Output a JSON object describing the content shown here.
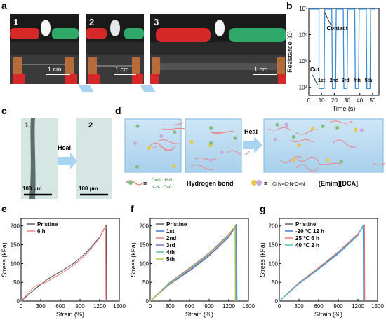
{
  "panels": {
    "a": {
      "letter": "a",
      "photos": [
        {
          "label": "1",
          "scale": "1 cm"
        },
        {
          "label": "2",
          "scale": "1 cm"
        },
        {
          "label": "3",
          "scale": "1 cm"
        }
      ]
    },
    "b": {
      "letter": "b"
    },
    "c": {
      "letter": "c",
      "images": [
        {
          "label": "1",
          "scale": "100 μm"
        },
        {
          "label": "2",
          "scale": "100 μm"
        }
      ],
      "arrow_label": "Heal"
    },
    "d": {
      "letter": "d",
      "arrow_label": "Heal",
      "legend_hbond": "Hydrogen bond",
      "legend_il": "[Emim][DCA]"
    },
    "e": {
      "letter": "e"
    },
    "f": {
      "letter": "f"
    },
    "g": {
      "letter": "g"
    }
  },
  "colors": {
    "pristine": "#555555",
    "e_6h": "#f08080",
    "f_1st": "#3b6fd6",
    "f_2nd": "#f07070",
    "f_3rd": "#8a5fc8",
    "f_4th": "#49b8c8",
    "f_5th": "#b0c040",
    "g_1": "#3b6fd6",
    "g_2": "#f07070",
    "g_3": "#49b8c8",
    "resist": "#3b8fd6"
  },
  "chart_data": [
    {
      "id": "b",
      "type": "line",
      "ylabel": "Resistance (Ω)",
      "xlabel": "Time (s)",
      "yscale": "log",
      "ylim": [
        5000,
        10000000
      ],
      "xlim": [
        0,
        55
      ],
      "x_ticks": [
        0,
        10,
        20,
        30,
        40,
        50
      ],
      "y_ticks": [
        {
          "value": 10000,
          "label": "10⁴"
        },
        {
          "value": 100000,
          "label": "10⁵"
        },
        {
          "value": 1000000,
          "label": "10⁶"
        },
        {
          "value": 10000000,
          "label": "10⁷"
        }
      ],
      "annotations": {
        "cut": "Cut",
        "contact": "Contact"
      },
      "cycle_labels": [
        "1st",
        "2nd",
        "3rd",
        "4th",
        "5th"
      ],
      "cycles": [
        {
          "low": [
            8,
            12
          ],
          "high": [
            12.5,
            18
          ]
        },
        {
          "low": [
            18.5,
            21
          ],
          "high": [
            21.5,
            27
          ]
        },
        {
          "low": [
            27.5,
            30
          ],
          "high": [
            30.5,
            36
          ]
        },
        {
          "low": [
            36.5,
            39
          ],
          "high": [
            39.5,
            45
          ]
        },
        {
          "low": [
            45.5,
            48
          ],
          "high": [
            48.5,
            52
          ]
        }
      ],
      "base_value": 9000,
      "high_value": 9500000
    },
    {
      "id": "e",
      "type": "line",
      "xlabel": "Strain (%)",
      "ylabel": "Stress (kPa)",
      "xlim": [
        0,
        1500
      ],
      "ylim": [
        0,
        220
      ],
      "x_ticks": [
        0,
        300,
        600,
        900,
        1200,
        1500
      ],
      "y_ticks": [
        0,
        50,
        100,
        150,
        200
      ],
      "series": [
        {
          "name": "Pristine",
          "x": [
            0,
            200,
            400,
            600,
            800,
            1000,
            1200,
            1300
          ],
          "y": [
            0,
            30,
            58,
            78,
            100,
            130,
            170,
            203
          ]
        },
        {
          "name": "6 h",
          "x": [
            0,
            200,
            400,
            600,
            800,
            1000,
            1200,
            1290
          ],
          "y": [
            0,
            38,
            52,
            72,
            95,
            125,
            168,
            200
          ]
        }
      ],
      "break_x": [
        1300,
        1290
      ]
    },
    {
      "id": "f",
      "type": "line",
      "xlabel": "Strain (%)",
      "ylabel": "Stress (kPa)",
      "xlim": [
        0,
        1500
      ],
      "ylim": [
        0,
        220
      ],
      "x_ticks": [
        0,
        300,
        600,
        900,
        1200,
        1500
      ],
      "y_ticks": [
        0,
        50,
        100,
        150,
        200
      ],
      "series": [
        {
          "name": "Pristine",
          "x": [
            0,
            300,
            600,
            900,
            1200,
            1310
          ],
          "y": [
            0,
            48,
            85,
            125,
            175,
            203
          ]
        },
        {
          "name": "1st",
          "x": [
            0,
            300,
            600,
            900,
            1200,
            1320
          ],
          "y": [
            0,
            45,
            80,
            120,
            170,
            202
          ]
        },
        {
          "name": "2nd",
          "x": [
            0,
            300,
            600,
            900,
            1200,
            1300
          ],
          "y": [
            0,
            50,
            88,
            128,
            178,
            200
          ]
        },
        {
          "name": "3rd",
          "x": [
            0,
            300,
            600,
            900,
            1200,
            1315
          ],
          "y": [
            0,
            46,
            82,
            122,
            172,
            201
          ]
        },
        {
          "name": "4th",
          "x": [
            0,
            300,
            600,
            900,
            1200,
            1305
          ],
          "y": [
            0,
            49,
            86,
            126,
            176,
            199
          ]
        },
        {
          "name": "5th",
          "x": [
            0,
            300,
            600,
            900,
            1200,
            1295
          ],
          "y": [
            0,
            47,
            84,
            124,
            174,
            198
          ]
        }
      ]
    },
    {
      "id": "g",
      "type": "line",
      "xlabel": "Strain (%)",
      "ylabel": "Stress (kPa)",
      "xlim": [
        0,
        1500
      ],
      "ylim": [
        0,
        220
      ],
      "x_ticks": [
        0,
        300,
        600,
        900,
        1200,
        1500
      ],
      "y_ticks": [
        0,
        50,
        100,
        150,
        200
      ],
      "series": [
        {
          "name": "Pristine",
          "x": [
            0,
            300,
            600,
            900,
            1200,
            1290
          ],
          "y": [
            0,
            48,
            88,
            130,
            178,
            203
          ]
        },
        {
          "name": "-20 °C 12 h",
          "x": [
            0,
            300,
            600,
            900,
            1200,
            1280
          ],
          "y": [
            0,
            46,
            85,
            126,
            175,
            201
          ]
        },
        {
          "name": "25 °C 6 h",
          "x": [
            0,
            300,
            600,
            900,
            1200,
            1300
          ],
          "y": [
            0,
            49,
            89,
            131,
            179,
            202
          ]
        },
        {
          "name": "40 °C 2 h",
          "x": [
            0,
            300,
            600,
            900,
            1200,
            1285
          ],
          "y": [
            0,
            47,
            86,
            128,
            176,
            200
          ]
        }
      ]
    }
  ]
}
